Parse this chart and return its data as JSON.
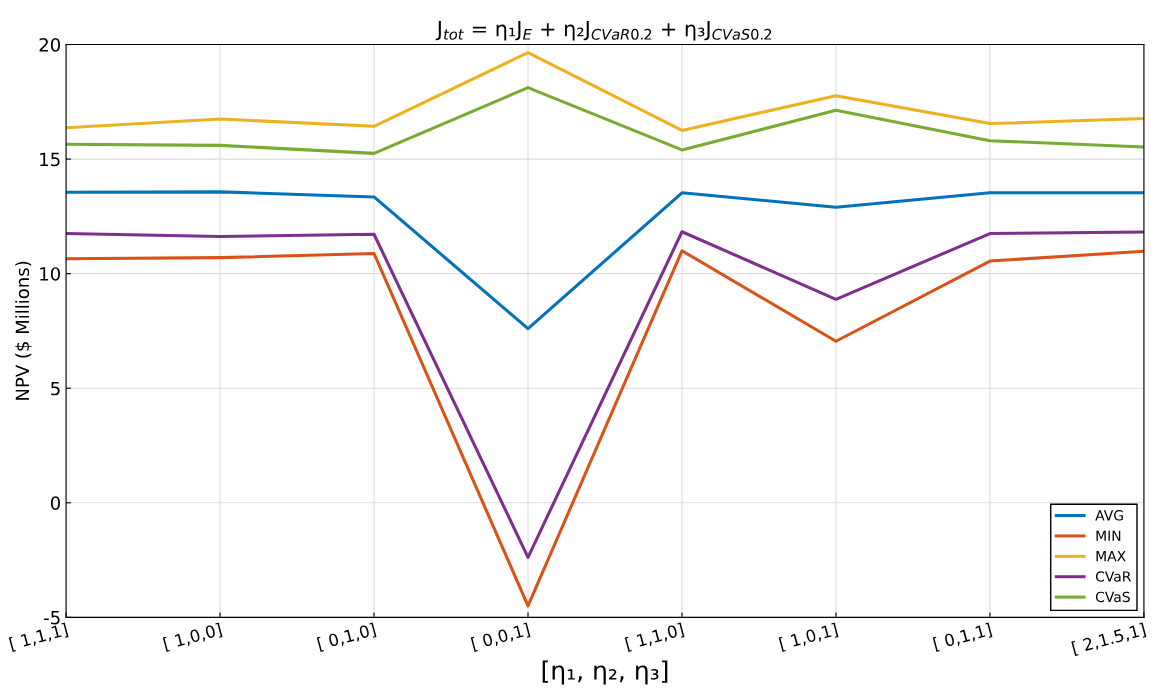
{
  "chart_data": {
    "type": "line",
    "title": "J$_{tot}$ = η₁J$_{E}$ + η₂J$_{CVaR0.2}$ + η₃J$_{CVaS0.2}$",
    "xlabel": "[η₁, η₂, η₃]",
    "ylabel": "NPV ($ Millions)",
    "categories": [
      "[ 1,1,1]",
      "[ 1,0,0]",
      "[ 0,1,0]",
      "[ 0,0,1]",
      "[ 1,1,0]",
      "[ 1,0,1]",
      "[ 0,1,1]",
      "[ 2,1.5,1]"
    ],
    "series": [
      {
        "name": "AVG",
        "color": "#0072bd",
        "values": [
          13.55,
          13.57,
          13.35,
          7.6,
          13.53,
          12.9,
          13.53,
          13.53
        ]
      },
      {
        "name": "MIN",
        "color": "#d95319",
        "values": [
          10.65,
          10.7,
          10.88,
          -4.5,
          11.0,
          7.05,
          10.55,
          10.98
        ]
      },
      {
        "name": "MAX",
        "color": "#edb120",
        "values": [
          16.37,
          16.75,
          16.43,
          19.65,
          16.25,
          17.77,
          16.55,
          16.77
        ]
      },
      {
        "name": "CVaR",
        "color": "#7e2f8e",
        "values": [
          11.75,
          11.62,
          11.72,
          -2.38,
          11.83,
          8.88,
          11.75,
          11.82
        ]
      },
      {
        "name": "CVaS",
        "color": "#77ac30",
        "values": [
          15.65,
          15.6,
          15.25,
          18.12,
          15.4,
          17.13,
          15.8,
          15.53
        ]
      }
    ],
    "ylim": [
      -5,
      20
    ],
    "yticks": [
      -5,
      0,
      5,
      10,
      15,
      20
    ],
    "grid": true,
    "legend": "bottom right",
    "marker": "none",
    "line_style": "solid"
  }
}
